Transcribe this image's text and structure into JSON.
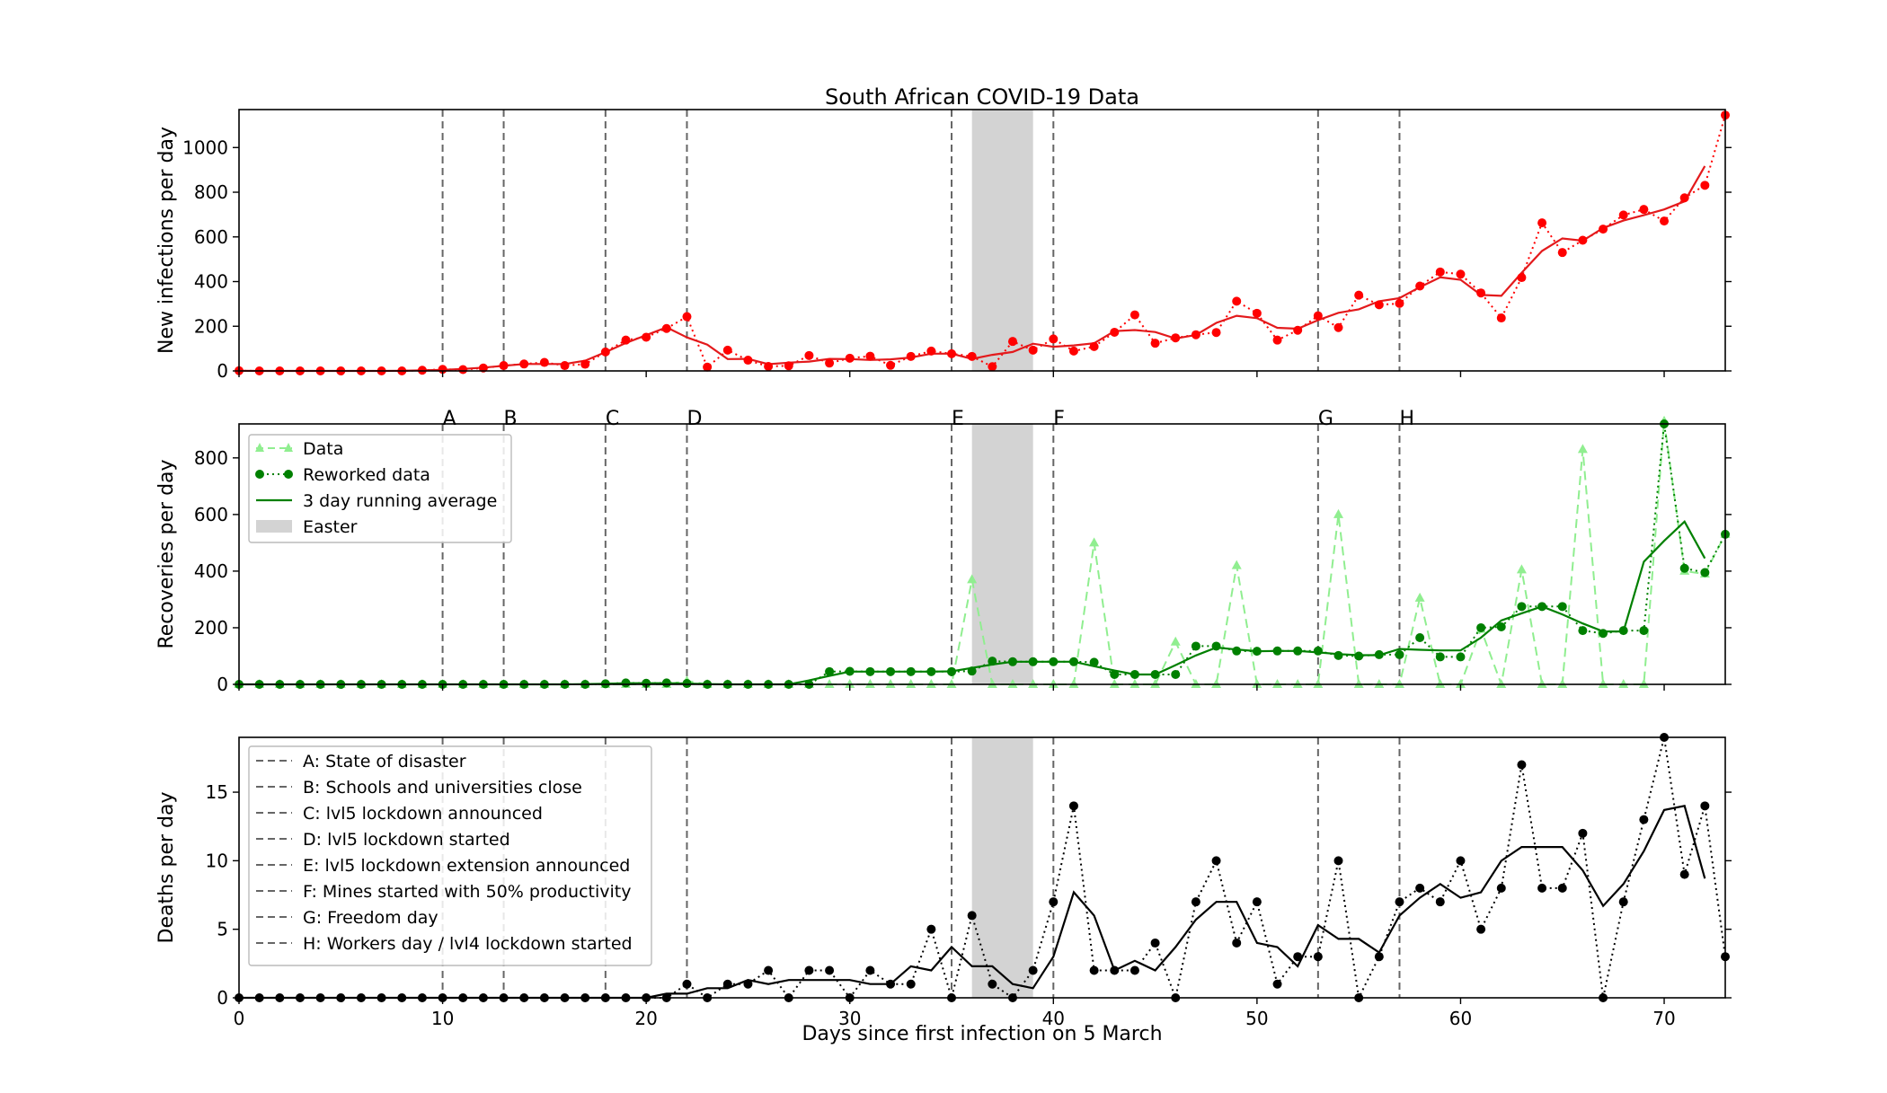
{
  "chart_data": {
    "type": "line",
    "title": "South African COVID-19 Data",
    "xlabel": "Days since first infection on 5 March",
    "xlim": [
      0,
      73
    ],
    "x_ticks": [
      0,
      10,
      20,
      30,
      40,
      50,
      60,
      70
    ],
    "colors": {
      "infections": "#ff0000",
      "infections_line": "#e31a1c",
      "recoveries_data": "#90ee90",
      "recoveries": "#008000",
      "deaths": "#000000",
      "event_line": "#666666",
      "easter": "#d3d3d3"
    },
    "easter_span": [
      36,
      39
    ],
    "events": [
      {
        "letter": "A",
        "day": 10,
        "label": "A: State of disaster"
      },
      {
        "letter": "B",
        "day": 13,
        "label": "B: Schools and universities close"
      },
      {
        "letter": "C",
        "day": 18,
        "label": "C: lvl5 lockdown announced"
      },
      {
        "letter": "D",
        "day": 22,
        "label": "D: lvl5 lockdown started"
      },
      {
        "letter": "E",
        "day": 35,
        "label": "E: lvl5 lockdown extension announced"
      },
      {
        "letter": "F",
        "day": 40,
        "label": "F: Mines started with 50% productivity"
      },
      {
        "letter": "G",
        "day": 53,
        "label": "G: Freedom day"
      },
      {
        "letter": "H",
        "day": 57,
        "label": "H: Workers day / lvl4 lockdown started"
      }
    ],
    "legend": {
      "data": "Data",
      "reworked": "Reworked data",
      "average": "3 day running average",
      "easter": "Easter"
    },
    "subplots": [
      {
        "key": "infections",
        "ylabel": "New infections per day",
        "ylim": [
          0,
          1170
        ],
        "y_ticks": [
          0,
          200,
          400,
          600,
          800,
          1000
        ],
        "reworked": [
          1,
          0,
          0,
          0,
          0,
          0,
          0,
          0,
          0,
          3,
          7,
          6,
          13,
          24,
          31,
          38,
          24,
          30,
          85,
          138,
          151,
          190,
          243,
          17,
          93,
          48,
          20,
          23,
          69,
          35,
          57,
          66,
          25,
          65,
          89,
          77,
          65,
          19,
          132,
          93,
          143,
          89,
          109,
          173,
          251,
          124,
          148,
          162,
          172,
          312,
          258,
          138,
          182,
          247,
          194,
          339,
          296,
          302,
          380,
          443,
          433,
          349,
          237,
          418,
          663,
          530,
          585,
          635,
          698,
          723,
          671,
          775,
          831,
          1145
        ],
        "average": [
          1,
          0,
          0,
          0,
          0,
          0,
          0,
          0,
          1,
          3,
          5,
          9,
          15,
          23,
          31,
          31,
          31,
          46,
          84,
          125,
          160,
          195,
          150,
          118,
          53,
          54,
          30,
          37,
          42,
          54,
          53,
          49,
          52,
          60,
          77,
          77,
          54,
          72,
          85,
          122,
          108,
          114,
          124,
          178,
          183,
          174,
          145,
          161,
          215,
          247,
          236,
          193,
          189,
          227,
          260,
          276,
          312,
          326,
          375,
          419,
          408,
          340,
          336,
          439,
          537,
          593,
          583,
          640,
          673,
          697,
          723,
          759,
          917
        ]
      },
      {
        "key": "recoveries",
        "ylabel": "Recoveries per day",
        "ylim": [
          0,
          920
        ],
        "y_ticks": [
          0,
          200,
          400,
          600,
          800
        ],
        "data": [
          0,
          0,
          0,
          0,
          0,
          0,
          0,
          0,
          0,
          0,
          0,
          0,
          0,
          0,
          0,
          0,
          0,
          0,
          0,
          0,
          0,
          0,
          12,
          0,
          0,
          0,
          0,
          0,
          0,
          0,
          0,
          0,
          0,
          0,
          0,
          0,
          370,
          0,
          0,
          0,
          0,
          0,
          500,
          0,
          0,
          0,
          150,
          0,
          0,
          420,
          0,
          0,
          0,
          0,
          600,
          0,
          0,
          0,
          305,
          0,
          0,
          195,
          0,
          405,
          0,
          0,
          830,
          0,
          0,
          0,
          930,
          400,
          390,
          530
        ],
        "reworked": [
          0,
          0,
          0,
          0,
          0,
          0,
          0,
          0,
          0,
          0,
          0,
          0,
          0,
          0,
          0,
          0,
          0,
          0,
          2,
          5,
          4,
          5,
          3,
          0,
          0,
          0,
          0,
          0,
          0,
          45,
          46,
          45,
          45,
          45,
          45,
          45,
          47,
          82,
          80,
          80,
          80,
          80,
          78,
          35,
          35,
          35,
          35,
          135,
          135,
          118,
          117,
          118,
          118,
          118,
          102,
          100,
          105,
          105,
          165,
          97,
          97,
          200,
          203,
          275,
          275,
          275,
          190,
          180,
          190,
          190,
          920,
          410,
          395,
          530
        ],
        "average": [
          0,
          0,
          0,
          0,
          0,
          0,
          0,
          0,
          0,
          0,
          0,
          0,
          0,
          0,
          0,
          0,
          0,
          1,
          2,
          4,
          4,
          4,
          3,
          1,
          0,
          0,
          0,
          0,
          14,
          30,
          45,
          45,
          45,
          45,
          45,
          46,
          58,
          70,
          80,
          80,
          80,
          80,
          64,
          49,
          35,
          35,
          68,
          102,
          130,
          123,
          117,
          118,
          118,
          113,
          107,
          103,
          103,
          125,
          122,
          120,
          120,
          165,
          226,
          251,
          275,
          247,
          215,
          187,
          187,
          433,
          507,
          575,
          445
        ]
      },
      {
        "key": "deaths",
        "ylabel": "Deaths per day",
        "ylim": [
          0,
          19
        ],
        "y_ticks": [
          0,
          5,
          10,
          15
        ],
        "reworked": [
          0,
          0,
          0,
          0,
          0,
          0,
          0,
          0,
          0,
          0,
          0,
          0,
          0,
          0,
          0,
          0,
          0,
          0,
          0,
          0,
          0,
          0,
          1,
          0,
          1,
          1,
          2,
          0,
          2,
          2,
          0,
          2,
          1,
          1,
          5,
          0,
          6,
          1,
          0,
          2,
          7,
          14,
          2,
          2,
          2,
          4,
          0,
          7,
          10,
          4,
          7,
          1,
          3,
          3,
          10,
          0,
          3,
          7,
          8,
          7,
          10,
          5,
          8,
          17,
          8,
          8,
          12,
          0,
          7,
          13,
          19,
          9,
          14,
          3
        ],
        "average": [
          0,
          0,
          0,
          0,
          0,
          0,
          0,
          0,
          0,
          0,
          0,
          0,
          0,
          0,
          0,
          0,
          0,
          0,
          0,
          0,
          0,
          0.3,
          0.3,
          0.7,
          0.7,
          1.3,
          1,
          1.3,
          1.3,
          1.3,
          1.3,
          1,
          1,
          2.3,
          2,
          3.7,
          2.3,
          2.3,
          1,
          0.7,
          3,
          7.7,
          6,
          2,
          2.7,
          2,
          3.7,
          5.7,
          7,
          7,
          4,
          3.7,
          2.3,
          5.3,
          4.3,
          4.3,
          3.3,
          6,
          7.3,
          8.3,
          7.3,
          7.7,
          10,
          11,
          11,
          11,
          9.3,
          6.7,
          8.3,
          10.7,
          13.7,
          14,
          8.7
        ]
      }
    ]
  }
}
